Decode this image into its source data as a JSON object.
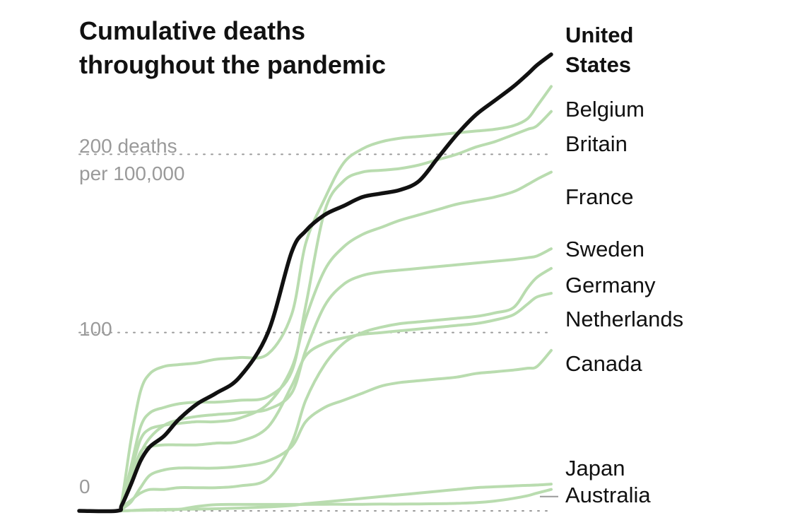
{
  "chart_data": {
    "type": "line",
    "title_lines": [
      "Cumulative deaths",
      "throughout the pandemic"
    ],
    "ylabel": "deaths per 100,000",
    "ylim": [
      0,
      235
    ],
    "x_domain": [
      0,
      100
    ],
    "gridlines": [
      {
        "value": 0,
        "label_lines": [
          "0"
        ]
      },
      {
        "value": 100,
        "label_lines": [
          "100"
        ]
      },
      {
        "value": 200,
        "label_lines": [
          "200 deaths",
          "per 100,000"
        ]
      }
    ],
    "series": [
      {
        "name": "Belgium",
        "label_lines": [
          "Belgium"
        ],
        "highlight": false,
        "x": [
          0,
          8,
          9,
          11,
          13,
          15,
          18,
          21,
          25,
          29,
          34,
          40,
          45,
          48,
          52,
          56,
          60,
          64,
          68,
          72,
          76,
          80,
          84,
          88,
          92,
          95,
          97,
          100
        ],
        "values": [
          0,
          0,
          5,
          40,
          67,
          77,
          81,
          82,
          83,
          85,
          86,
          88,
          110,
          150,
          175,
          195,
          203,
          207,
          209,
          210,
          211,
          212,
          213,
          214,
          216,
          220,
          227,
          238
        ]
      },
      {
        "name": "Britain",
        "label_lines": [
          "Britain"
        ],
        "highlight": false,
        "x": [
          0,
          8,
          9,
          11,
          13,
          15,
          18,
          21,
          25,
          29,
          34,
          40,
          45,
          48,
          52,
          56,
          60,
          64,
          68,
          72,
          76,
          80,
          84,
          88,
          92,
          95,
          97,
          100
        ],
        "values": [
          0,
          0,
          4,
          25,
          47,
          55,
          58,
          60,
          61,
          61,
          62,
          64,
          78,
          115,
          168,
          185,
          190,
          191,
          192,
          194,
          197,
          200,
          204,
          207,
          211,
          214,
          216,
          224
        ]
      },
      {
        "name": "France",
        "label_lines": [
          "France"
        ],
        "highlight": false,
        "x": [
          0,
          8,
          9,
          11,
          13,
          15,
          18,
          21,
          25,
          29,
          34,
          40,
          45,
          48,
          52,
          56,
          60,
          64,
          68,
          72,
          76,
          80,
          84,
          88,
          92,
          95,
          97,
          100
        ],
        "values": [
          0,
          0,
          4,
          22,
          40,
          46,
          48,
          49,
          50,
          50,
          52,
          60,
          80,
          108,
          135,
          148,
          155,
          159,
          163,
          166,
          169,
          172,
          174,
          176,
          179,
          183,
          186,
          190
        ]
      },
      {
        "name": "Sweden",
        "label_lines": [
          "Sweden"
        ],
        "highlight": false,
        "x": [
          0,
          8,
          9,
          11,
          13,
          15,
          18,
          21,
          25,
          29,
          34,
          40,
          45,
          48,
          52,
          56,
          60,
          64,
          68,
          72,
          76,
          80,
          84,
          88,
          92,
          95,
          97,
          100
        ],
        "values": [
          0,
          0,
          3,
          16,
          32,
          41,
          48,
          51,
          53,
          54,
          55,
          57,
          66,
          90,
          115,
          127,
          132,
          134,
          135,
          136,
          137,
          138,
          139,
          140,
          141,
          142,
          143,
          147
        ]
      },
      {
        "name": "Germany",
        "label_lines": [
          "Germany"
        ],
        "highlight": false,
        "x": [
          0,
          8,
          9,
          11,
          13,
          15,
          18,
          21,
          25,
          29,
          34,
          40,
          45,
          48,
          52,
          56,
          60,
          64,
          68,
          72,
          76,
          80,
          84,
          88,
          92,
          95,
          97,
          100
        ],
        "values": [
          0,
          0,
          2,
          6,
          10,
          12,
          12,
          13,
          13,
          13,
          14,
          18,
          38,
          62,
          82,
          94,
          100,
          103,
          105,
          106,
          107,
          108,
          109,
          111,
          114,
          125,
          131,
          136
        ]
      },
      {
        "name": "Netherlands",
        "label_lines": [
          "Netherlands"
        ],
        "highlight": false,
        "x": [
          0,
          8,
          9,
          11,
          13,
          15,
          18,
          21,
          25,
          29,
          34,
          40,
          45,
          48,
          52,
          56,
          60,
          64,
          68,
          72,
          76,
          80,
          84,
          88,
          92,
          95,
          97,
          100
        ],
        "values": [
          0,
          0,
          3,
          18,
          33,
          36,
          37,
          37,
          37,
          38,
          39,
          47,
          70,
          87,
          94,
          97,
          99,
          100,
          101,
          102,
          103,
          104,
          105,
          107,
          110,
          116,
          120,
          122
        ]
      },
      {
        "name": "Canada",
        "label_lines": [
          "Canada"
        ],
        "highlight": false,
        "x": [
          0,
          8,
          9,
          11,
          13,
          15,
          18,
          21,
          25,
          29,
          34,
          40,
          45,
          48,
          52,
          56,
          60,
          64,
          68,
          72,
          76,
          80,
          84,
          88,
          92,
          95,
          97,
          100
        ],
        "values": [
          0,
          0,
          1,
          5,
          13,
          20,
          23,
          24,
          24,
          24,
          25,
          28,
          36,
          50,
          58,
          62,
          66,
          70,
          72,
          73,
          74,
          75,
          77,
          78,
          79,
          80,
          81,
          90
        ]
      },
      {
        "name": "Japan",
        "label_lines": [
          "Japan"
        ],
        "highlight": false,
        "x": [
          0,
          8,
          9,
          11,
          13,
          15,
          18,
          21,
          25,
          29,
          34,
          40,
          45,
          48,
          52,
          56,
          60,
          64,
          68,
          72,
          76,
          80,
          84,
          88,
          92,
          95,
          97,
          100
        ],
        "values": [
          0,
          0,
          0,
          0.2,
          0.5,
          0.7,
          0.8,
          0.9,
          1.0,
          1.2,
          1.6,
          2.2,
          3,
          4,
          5,
          6,
          7,
          8,
          9,
          10,
          11,
          12,
          13,
          13.5,
          14,
          14.3,
          14.5,
          15
        ]
      },
      {
        "name": "Australia",
        "label_lines": [
          "Australia"
        ],
        "highlight": false,
        "x": [
          0,
          8,
          9,
          11,
          13,
          15,
          18,
          21,
          25,
          29,
          34,
          40,
          45,
          48,
          52,
          56,
          60,
          64,
          68,
          72,
          76,
          80,
          84,
          88,
          92,
          95,
          97,
          100
        ],
        "values": [
          0,
          0,
          0,
          0.2,
          0.3,
          0.4,
          0.5,
          0.8,
          2.5,
          3.5,
          3.6,
          3.6,
          3.6,
          3.6,
          3.7,
          3.7,
          3.7,
          3.8,
          3.8,
          3.9,
          4.0,
          4.2,
          4.6,
          5.5,
          7.0,
          8.5,
          10,
          12
        ]
      },
      {
        "name": "United States",
        "label_lines": [
          "United",
          "States"
        ],
        "highlight": true,
        "x": [
          0,
          8,
          9,
          11,
          13,
          15,
          18,
          21,
          25,
          29,
          34,
          40,
          45,
          48,
          52,
          56,
          60,
          64,
          68,
          72,
          76,
          80,
          84,
          88,
          92,
          95,
          97,
          100
        ],
        "values": [
          0,
          0,
          3,
          15,
          28,
          36,
          42,
          51,
          60,
          66,
          75,
          100,
          145,
          157,
          166,
          171,
          176,
          178,
          180,
          185,
          198,
          211,
          222,
          230,
          238,
          245,
          250,
          256
        ]
      }
    ]
  }
}
